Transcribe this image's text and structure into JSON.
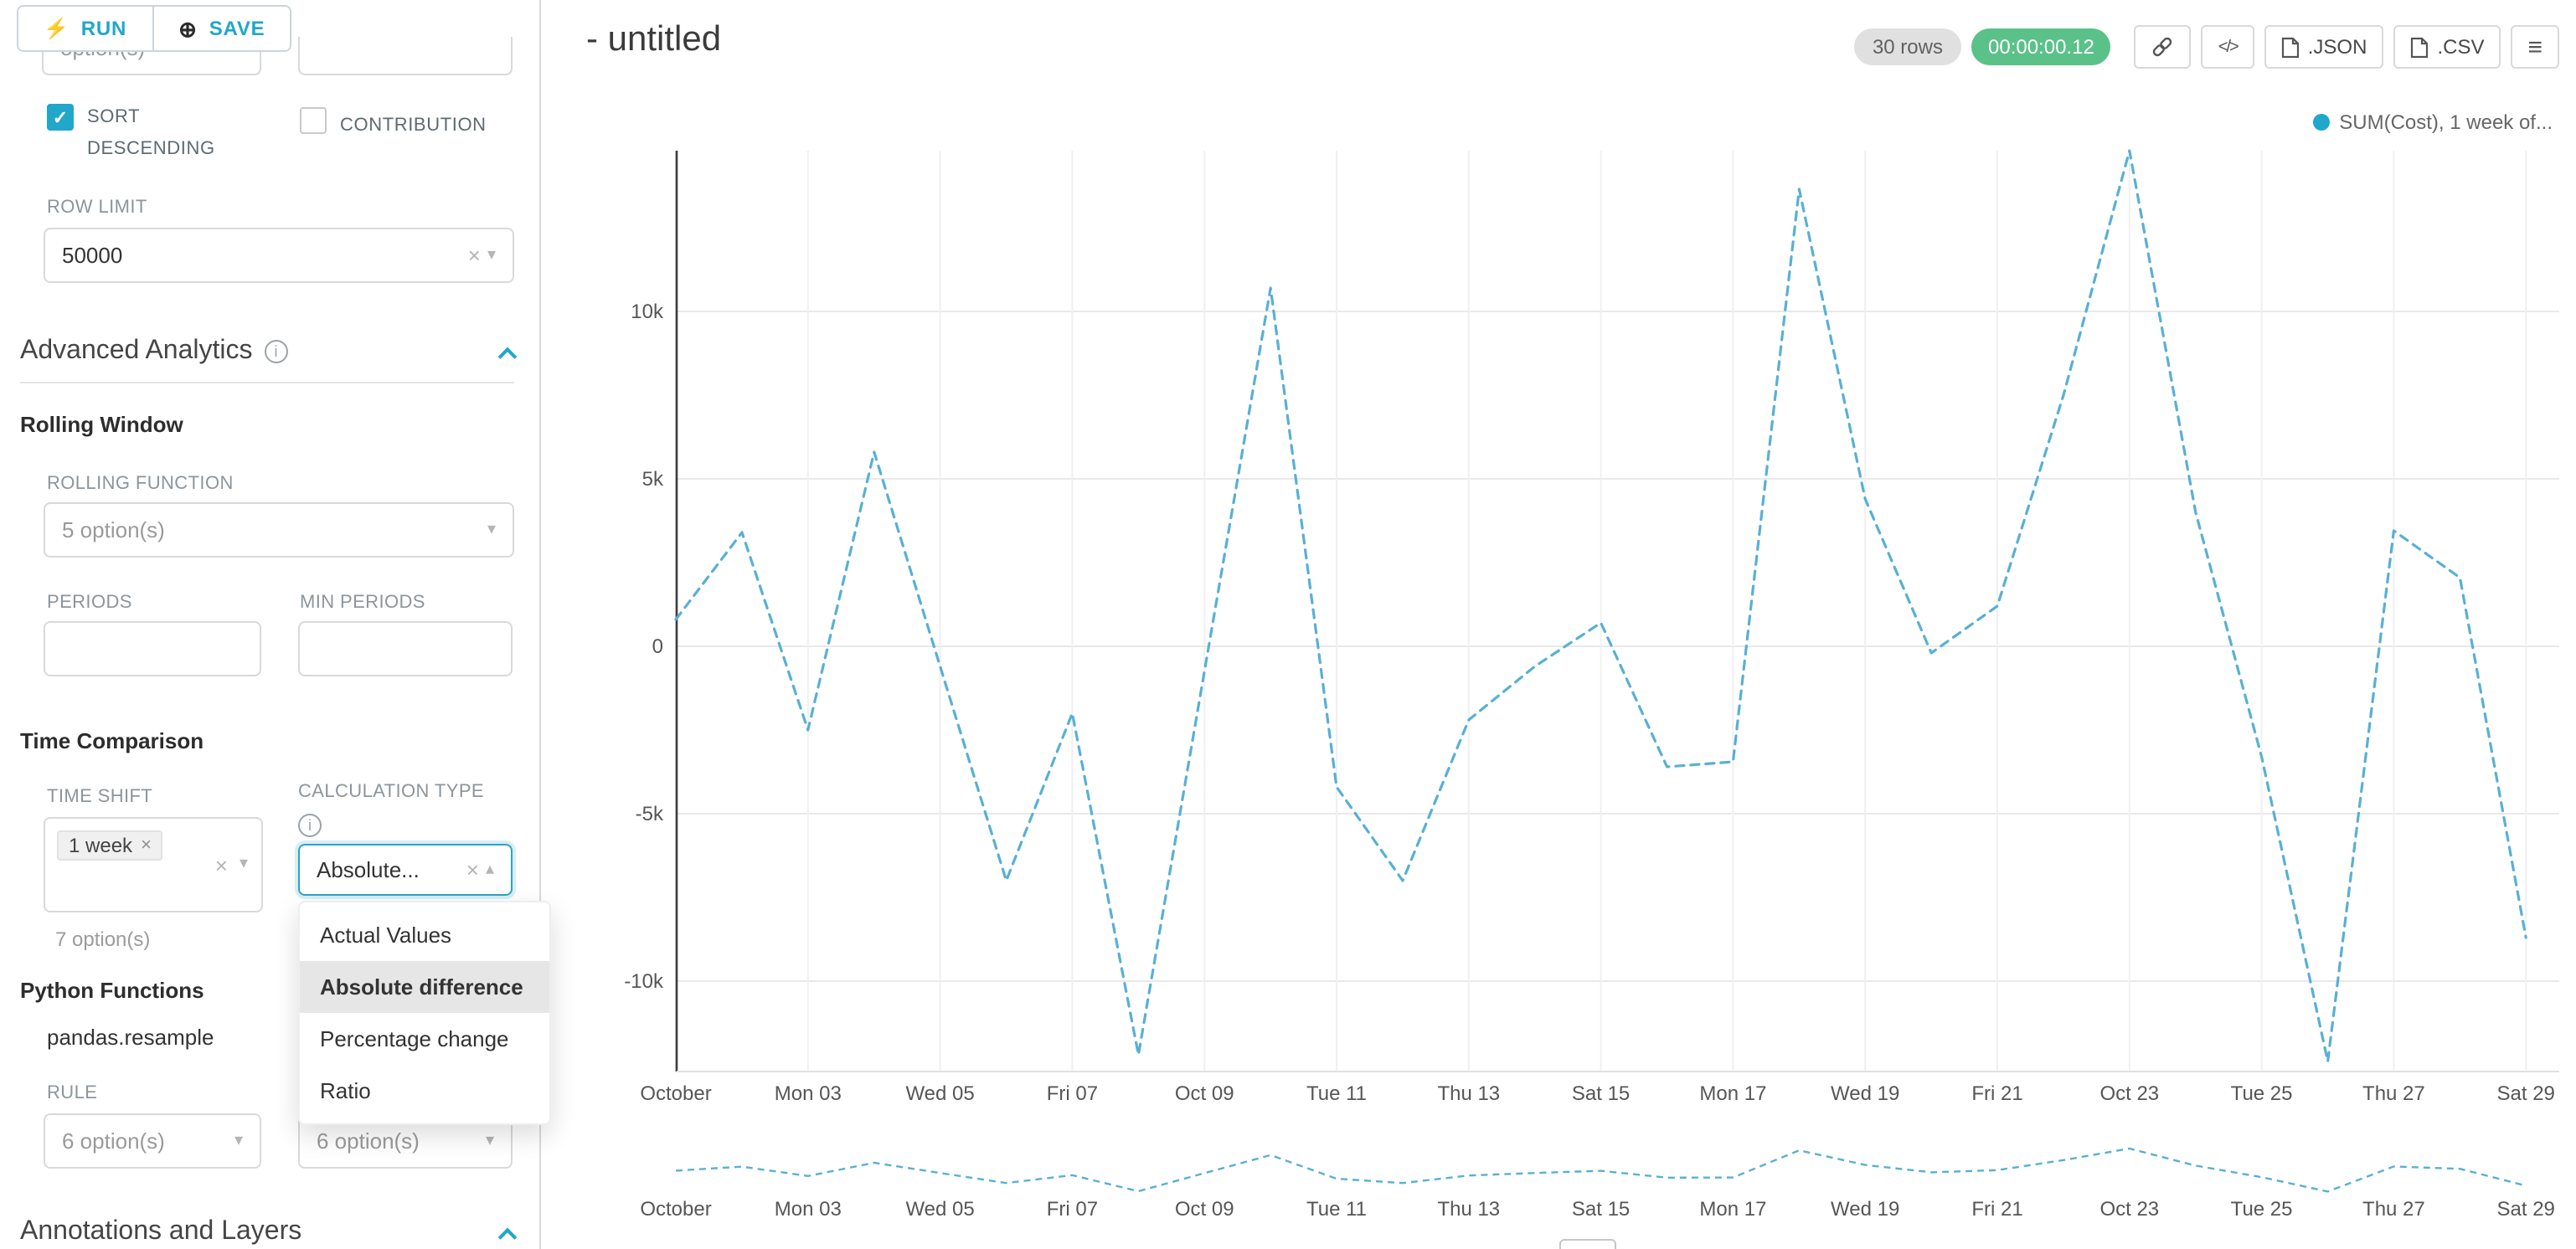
{
  "toolbar": {
    "run_label": "RUN",
    "save_label": "SAVE"
  },
  "sidebar": {
    "partial_top": {
      "left_value": "option(s)",
      "right_value": ""
    },
    "sort_descending": {
      "label": "SORT DESCENDING",
      "checked": true
    },
    "contribution": {
      "label": "CONTRIBUTION",
      "checked": false
    },
    "row_limit": {
      "label": "ROW LIMIT",
      "value": "50000"
    },
    "sections": {
      "advanced_analytics": "Advanced Analytics",
      "annotations": "Annotations and Layers"
    },
    "rolling_window": {
      "title": "Rolling Window",
      "function_label": "ROLLING FUNCTION",
      "function_value": "5 option(s)",
      "periods_label": "PERIODS",
      "min_periods_label": "MIN PERIODS"
    },
    "time_comparison": {
      "title": "Time Comparison",
      "time_shift_label": "TIME SHIFT",
      "time_shift_tag": "1 week",
      "time_shift_helper": "7 option(s)",
      "calc_type_label": "CALCULATION TYPE",
      "calc_type_value": "Absolute...",
      "options": [
        "Actual Values",
        "Absolute difference",
        "Percentage change",
        "Ratio"
      ],
      "selected_option_index": 1
    },
    "python_functions": {
      "title": "Python Functions",
      "function_name": "pandas.resample",
      "rule_label": "RULE",
      "rule_value": "6 option(s)",
      "method_value": "6 option(s)"
    }
  },
  "header": {
    "title": "- untitled",
    "rows_badge": "30 rows",
    "timer": "00:00:00.12",
    "buttons": {
      "json": ".JSON",
      "csv": ".CSV"
    }
  },
  "chart_data": {
    "type": "line",
    "title": "",
    "legend": [
      "SUM(Cost), 1 week of..."
    ],
    "legend_position": "top-right",
    "color": "#58b0d4",
    "legend_dot_color": "#1fa8c9",
    "line_style": "dashed",
    "grid": true,
    "x_unit": "day",
    "x_tick_labels": [
      "October",
      "Mon 03",
      "Wed 05",
      "Fri 07",
      "Oct 09",
      "Tue 11",
      "Thu 13",
      "Sat 15",
      "Mon 17",
      "Wed 19",
      "Fri 21",
      "Oct 23",
      "Tue 25",
      "Thu 27",
      "Sat 29"
    ],
    "tick_every_n_points": 2,
    "y_ticks": [
      10000,
      5000,
      0,
      -5000,
      -10000
    ],
    "y_tick_labels": [
      "10k",
      "5k",
      "0",
      "-5k",
      "-10k"
    ],
    "ylim": [
      -12700,
      14800
    ],
    "series": [
      {
        "name": "SUM(Cost), 1 week offset",
        "values": [
          800,
          3400,
          -2500,
          5800,
          -600,
          -7000,
          -2000,
          -12200,
          -750,
          10700,
          -4200,
          -7000,
          -2200,
          -600,
          700,
          -3600,
          -3450,
          13650,
          4400,
          -200,
          1200,
          7500,
          14800,
          4000,
          -3300,
          -12400,
          3450,
          2050,
          -8700
        ]
      }
    ],
    "preview_chart": {
      "same_series_as_main": true,
      "x_tick_labels_repeated": true
    }
  }
}
